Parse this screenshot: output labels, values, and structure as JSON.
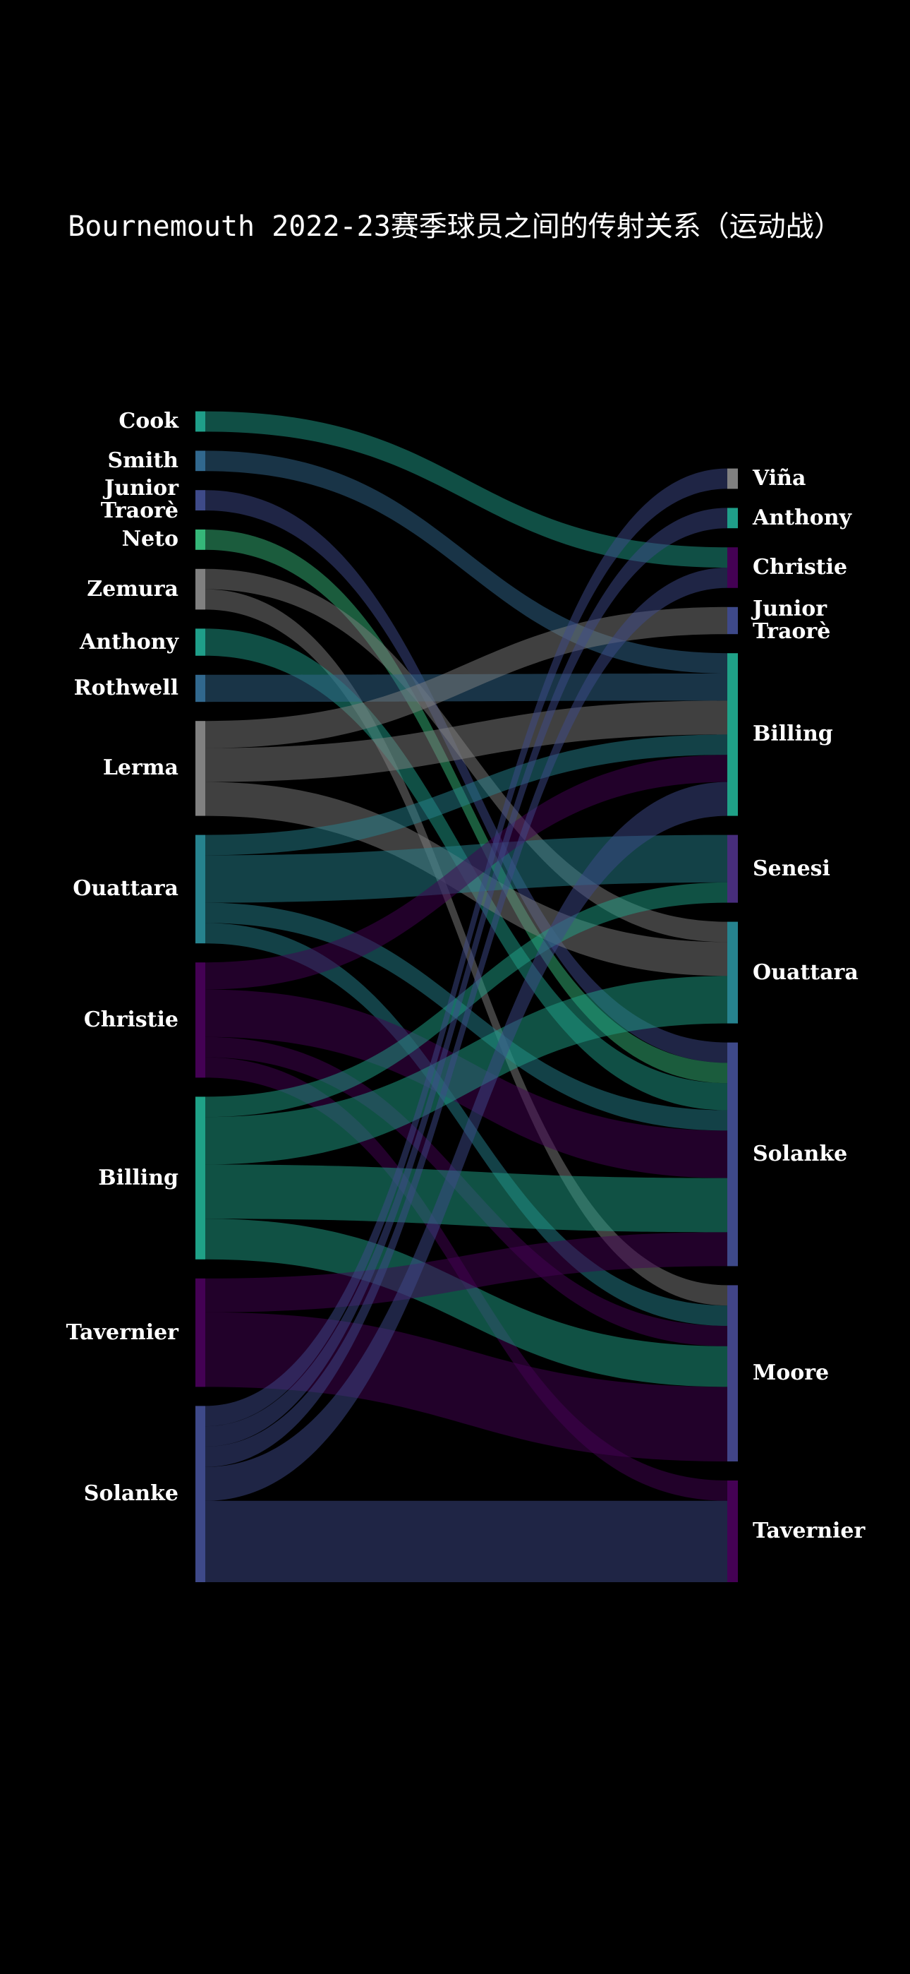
{
  "chart_data": {
    "type": "sankey",
    "title": "Bournemouth 2022-23赛季球员之间的传射关系（运动战）",
    "sources": [
      {
        "name": "Cook",
        "color": "#1f9e89"
      },
      {
        "name": "Smith",
        "color": "#31688e"
      },
      {
        "name": "Junior Traorè",
        "color": "#3e4a89"
      },
      {
        "name": "Neto",
        "color": "#35b779"
      },
      {
        "name": "Zemura",
        "color": "#808080"
      },
      {
        "name": "Anthony",
        "color": "#1f9e89"
      },
      {
        "name": "Rothwell",
        "color": "#31688e"
      },
      {
        "name": "Lerma",
        "color": "#808080"
      },
      {
        "name": "Ouattara",
        "color": "#26828e"
      },
      {
        "name": "Christie",
        "color": "#440154"
      },
      {
        "name": "Billing",
        "color": "#1fa187"
      },
      {
        "name": "Tavernier",
        "color": "#440154"
      },
      {
        "name": "Solanke",
        "color": "#3e4989"
      }
    ],
    "targets": [
      {
        "name": "Viña",
        "color": "#808080"
      },
      {
        "name": "Anthony",
        "color": "#1f9e89"
      },
      {
        "name": "Christie",
        "color": "#440154"
      },
      {
        "name": "Junior Traorè",
        "color": "#3e4989"
      },
      {
        "name": "Billing",
        "color": "#1fa187"
      },
      {
        "name": "Senesi",
        "color": "#472d7b"
      },
      {
        "name": "Ouattara",
        "color": "#26828e"
      },
      {
        "name": "Solanke",
        "color": "#3e4989"
      },
      {
        "name": "Moore",
        "color": "#414487"
      },
      {
        "name": "Tavernier",
        "color": "#440154"
      }
    ],
    "links": [
      {
        "source": 0,
        "target": 2,
        "value": 3
      },
      {
        "source": 1,
        "target": 4,
        "value": 3
      },
      {
        "source": 2,
        "target": 7,
        "value": 3
      },
      {
        "source": 3,
        "target": 7,
        "value": 3
      },
      {
        "source": 4,
        "target": 6,
        "value": 3
      },
      {
        "source": 4,
        "target": 8,
        "value": 3
      },
      {
        "source": 5,
        "target": 7,
        "value": 4
      },
      {
        "source": 6,
        "target": 4,
        "value": 4
      },
      {
        "source": 7,
        "target": 3,
        "value": 4
      },
      {
        "source": 7,
        "target": 4,
        "value": 5
      },
      {
        "source": 7,
        "target": 6,
        "value": 5
      },
      {
        "source": 8,
        "target": 4,
        "value": 3
      },
      {
        "source": 8,
        "target": 5,
        "value": 7
      },
      {
        "source": 8,
        "target": 7,
        "value": 3
      },
      {
        "source": 8,
        "target": 8,
        "value": 3
      },
      {
        "source": 9,
        "target": 4,
        "value": 4
      },
      {
        "source": 9,
        "target": 7,
        "value": 7
      },
      {
        "source": 9,
        "target": 8,
        "value": 3
      },
      {
        "source": 9,
        "target": 9,
        "value": 3
      },
      {
        "source": 10,
        "target": 5,
        "value": 3
      },
      {
        "source": 10,
        "target": 6,
        "value": 7
      },
      {
        "source": 10,
        "target": 7,
        "value": 8
      },
      {
        "source": 10,
        "target": 8,
        "value": 6
      },
      {
        "source": 11,
        "target": 7,
        "value": 5
      },
      {
        "source": 11,
        "target": 8,
        "value": 11
      },
      {
        "source": 12,
        "target": 0,
        "value": 3
      },
      {
        "source": 12,
        "target": 1,
        "value": 3
      },
      {
        "source": 12,
        "target": 2,
        "value": 3
      },
      {
        "source": 12,
        "target": 4,
        "value": 5
      },
      {
        "source": 12,
        "target": 9,
        "value": 12
      }
    ],
    "link_opacity": 0.5
  }
}
